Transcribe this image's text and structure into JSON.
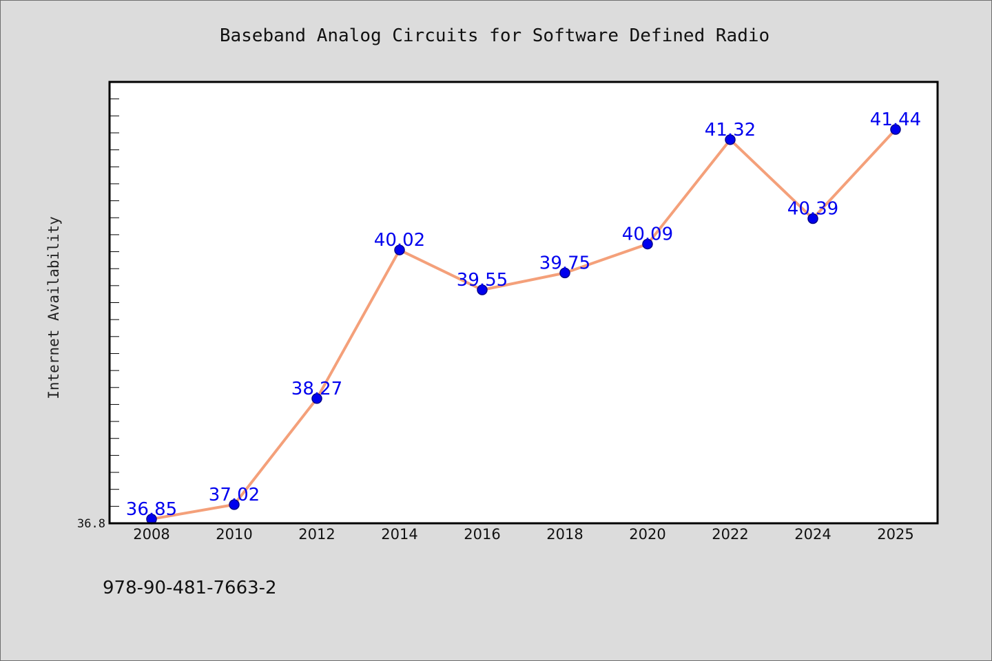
{
  "chart_data": {
    "type": "line",
    "title": "Baseband Analog Circuits for Software Defined Radio",
    "ylabel": "Internet Availability",
    "xlabel": "",
    "categories": [
      "2008",
      "2010",
      "2012",
      "2014",
      "2016",
      "2018",
      "2020",
      "2022",
      "2024",
      "2025"
    ],
    "series": [
      {
        "values": [
          36.85,
          37.02,
          38.27,
          40.02,
          39.55,
          39.75,
          40.09,
          41.32,
          40.39,
          41.44
        ],
        "labels": [
          "36.85",
          "37.02",
          "38.27",
          "40.02",
          "39.55",
          "39.75",
          "40.09",
          "41.32",
          "40.39",
          "41.44"
        ]
      }
    ],
    "ylim": [
      36.8,
      42.0
    ],
    "y_tick_labels": [
      "36.8"
    ],
    "y_minor_tick_step": 0.2,
    "grid": false,
    "legend": "none",
    "colors": {
      "line": "#f4a07a",
      "marker": "#0000ee",
      "marker_edge": "#00008b",
      "data_label": "#0000ee",
      "plot_background": "#ffffff",
      "figure_background": "#dcdcdc"
    }
  },
  "footer": {
    "isbn": "978-90-481-7663-2"
  }
}
